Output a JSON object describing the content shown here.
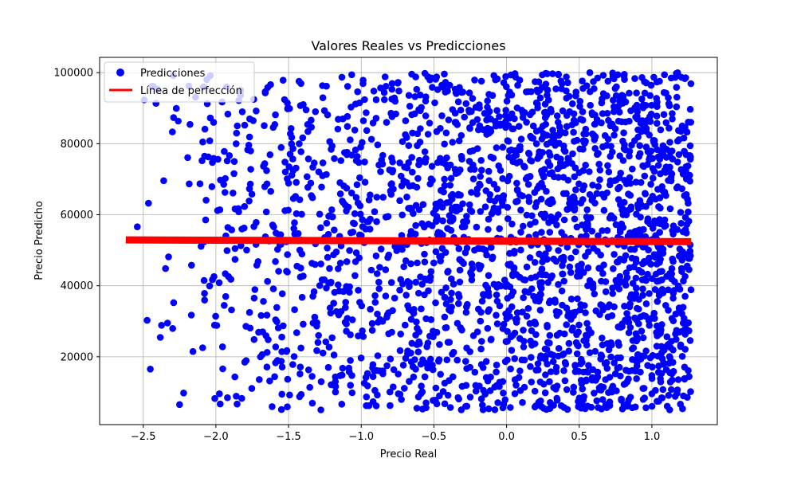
{
  "chart_data": {
    "type": "scatter",
    "title": "Valores Reales vs Predicciones",
    "xlabel": "Precio Real",
    "ylabel": "Precio Predicho",
    "xlim": [
      -2.8,
      1.45
    ],
    "ylim": [
      900,
      104300
    ],
    "xticks": [
      -2.5,
      -2.0,
      -1.5,
      -1.0,
      -0.5,
      0.0,
      0.5,
      1.0
    ],
    "xtick_labels": [
      "−2.5",
      "−2.0",
      "−1.5",
      "−1.0",
      "−0.5",
      "0.0",
      "0.5",
      "1.0"
    ],
    "yticks": [
      20000,
      40000,
      60000,
      80000,
      100000
    ],
    "ytick_labels": [
      "20000",
      "40000",
      "60000",
      "80000",
      "100000"
    ],
    "grid": true,
    "legend_position": "top-left",
    "colors": {
      "points": "#0000ff",
      "line": "#ff0000"
    },
    "series": [
      {
        "name": "Predicciones",
        "kind": "scatter",
        "x_range": [
          -2.62,
          1.27
        ],
        "y_range": [
          5000,
          100000
        ],
        "density": "increasing with x",
        "approx_points": 2400
      },
      {
        "name": "Línea de perfección",
        "kind": "line",
        "x": [
          -2.62,
          1.27
        ],
        "y": [
          52900,
          52400
        ]
      }
    ]
  }
}
